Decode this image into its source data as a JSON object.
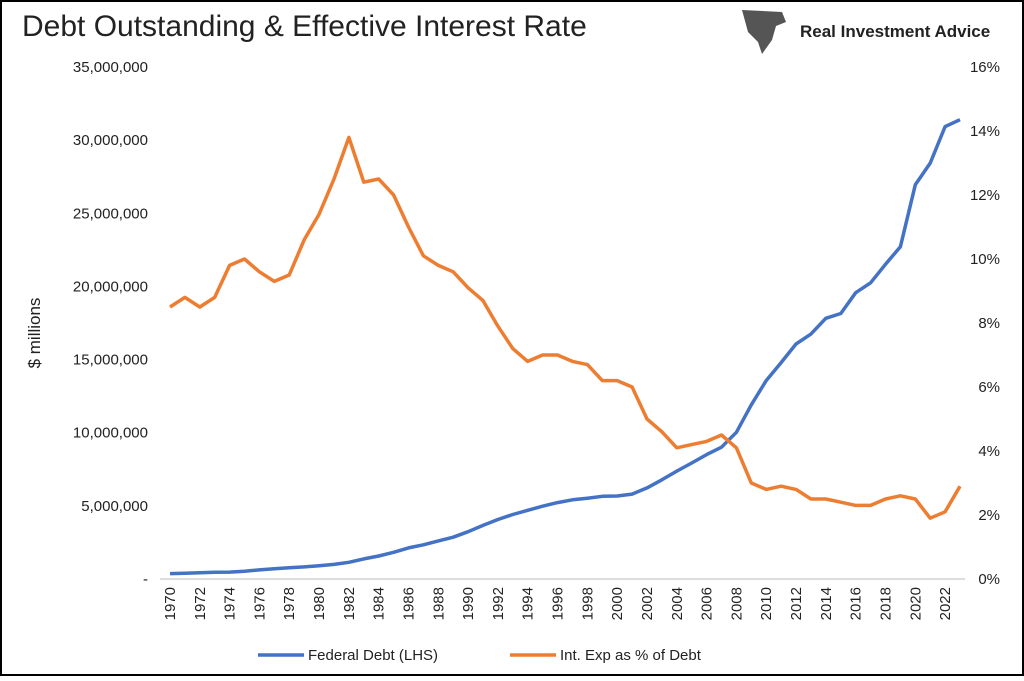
{
  "brand": "Real Investment Advice",
  "chart_data": {
    "type": "line",
    "title": "Debt Outstanding & Effective Interest Rate",
    "y_label": "$ millions",
    "x": [
      1970,
      1971,
      1972,
      1973,
      1974,
      1975,
      1976,
      1977,
      1978,
      1979,
      1980,
      1981,
      1982,
      1983,
      1984,
      1985,
      1986,
      1987,
      1988,
      1989,
      1990,
      1991,
      1992,
      1993,
      1994,
      1995,
      1996,
      1997,
      1998,
      1999,
      2000,
      2001,
      2002,
      2003,
      2004,
      2005,
      2006,
      2007,
      2008,
      2009,
      2010,
      2011,
      2012,
      2013,
      2014,
      2015,
      2016,
      2017,
      2018,
      2019,
      2020,
      2021,
      2022,
      2023
    ],
    "xlim": [
      1970,
      2023
    ],
    "xticks": [
      1970,
      1972,
      1974,
      1976,
      1978,
      1980,
      1982,
      1984,
      1986,
      1988,
      1990,
      1992,
      1994,
      1996,
      1998,
      2000,
      2002,
      2004,
      2006,
      2008,
      2010,
      2012,
      2014,
      2016,
      2018,
      2020,
      2022
    ],
    "ylim": [
      0,
      35000000
    ],
    "yticks": [
      {
        "value": 0,
        "label": "-"
      },
      {
        "value": 5000000,
        "label": "5,000,000"
      },
      {
        "value": 10000000,
        "label": "10,000,000"
      },
      {
        "value": 15000000,
        "label": "15,000,000"
      },
      {
        "value": 20000000,
        "label": "20,000,000"
      },
      {
        "value": 25000000,
        "label": "25,000,000"
      },
      {
        "value": 30000000,
        "label": "30,000,000"
      },
      {
        "value": 35000000,
        "label": "35,000,000"
      }
    ],
    "y2lim": [
      0,
      16
    ],
    "y2ticks": [
      {
        "value": 0,
        "label": "0%"
      },
      {
        "value": 2,
        "label": "2%"
      },
      {
        "value": 4,
        "label": "4%"
      },
      {
        "value": 6,
        "label": "6%"
      },
      {
        "value": 8,
        "label": "8%"
      },
      {
        "value": 10,
        "label": "10%"
      },
      {
        "value": 12,
        "label": "12%"
      },
      {
        "value": 14,
        "label": "14%"
      },
      {
        "value": 16,
        "label": "16%"
      }
    ],
    "series": [
      {
        "name": "Federal Debt (LHS)",
        "color": "#4472c4",
        "values": [
          370919,
          398130,
          427260,
          458141,
          475060,
          533189,
          620433,
          698840,
          771544,
          826519,
          907701,
          997855,
          1142034,
          1377210,
          1572266,
          1823103,
          2125302,
          2340000,
          2602000,
          2857000,
          3233000,
          3665000,
          4065000,
          4411000,
          4693000,
          4974000,
          5225000,
          5413000,
          5526000,
          5656000,
          5674000,
          5807000,
          6228000,
          6783000,
          7379000,
          7933000,
          8507000,
          9008000,
          10025000,
          11910000,
          13562000,
          14790000,
          16066000,
          16738000,
          17824000,
          18151000,
          19573000,
          20245000,
          21516000,
          22719000,
          26945000,
          28429000,
          30929000,
          31400000
        ]
      },
      {
        "name": "Int. Exp as % of Debt",
        "color": "#ed7d31",
        "axis": "y2",
        "values": [
          8.5,
          8.8,
          8.5,
          8.8,
          9.8,
          10.0,
          9.6,
          9.3,
          9.5,
          10.6,
          11.4,
          12.5,
          13.8,
          12.4,
          12.5,
          12.0,
          11.0,
          10.1,
          9.8,
          9.6,
          9.1,
          8.7,
          7.9,
          7.2,
          6.8,
          7.0,
          7.0,
          6.8,
          6.7,
          6.2,
          6.2,
          6.0,
          5.0,
          4.6,
          4.1,
          4.2,
          4.3,
          4.5,
          4.1,
          3.0,
          2.8,
          2.9,
          2.8,
          2.5,
          2.5,
          2.4,
          2.3,
          2.3,
          2.5,
          2.6,
          2.5,
          1.9,
          2.1,
          2.9
        ]
      }
    ]
  }
}
